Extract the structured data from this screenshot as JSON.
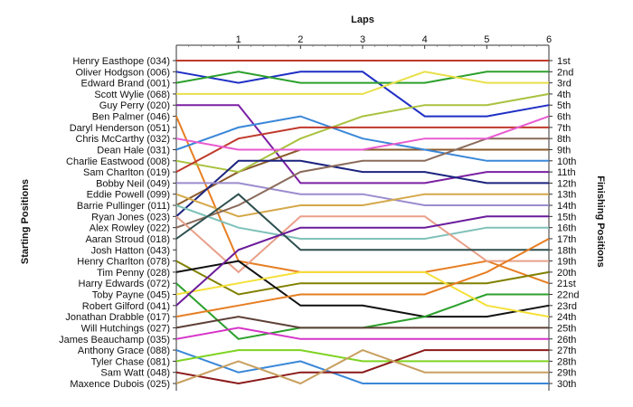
{
  "chart_data": {
    "type": "line",
    "title": "",
    "xlabel": "Laps",
    "ylabel_left": "Starting Positions",
    "ylabel_right": "Finishing Positions",
    "x_ticks": [
      "1",
      "2",
      "3",
      "4",
      "5",
      "6"
    ],
    "x": [
      0,
      1,
      2,
      3,
      4,
      5,
      6
    ],
    "ylim": [
      1,
      30
    ],
    "y_inverted": true,
    "grid": false,
    "legend": "none",
    "start_labels": [
      "Henry Easthope (034)",
      "Oliver Hodgson (006)",
      "Edward Brand (001)",
      "Scott Wylie (068)",
      "Guy Perry (020)",
      "Ben Palmer (046)",
      "Daryl Henderson (051)",
      "Chris McCarthy (032)",
      "Dean Hale (031)",
      "Charlie Eastwood (008)",
      "Sam Charlton (019)",
      "Bobby Neil (049)",
      "Eddie Powell (099)",
      "Barrie Pullinger (011)",
      "Ryan Jones (023)",
      "Alex Rowley (022)",
      "Aaran Stroud (018)",
      "Josh Hatton (043)",
      "Henry Charlton (078)",
      "Tim Penny (028)",
      "Harry Edwards (072)",
      "Toby Payne (045)",
      "Robert Gilford (041)",
      "Jonathan Drabble (017)",
      "Will Hutchings (027)",
      "James Beauchamp (035)",
      "Anthony Grace (088)",
      "Tyler Chase (081)",
      "Sam Watt (048)",
      "Maxence Dubois (025)"
    ],
    "finish_labels": [
      "1st",
      "2nd",
      "3rd",
      "4th",
      "5th",
      "6th",
      "7th",
      "8th",
      "9th",
      "10th",
      "11th",
      "12th",
      "13th",
      "14th",
      "15th",
      "16th",
      "17th",
      "18th",
      "19th",
      "20th",
      "21st",
      "22nd",
      "23rd",
      "24th",
      "25th",
      "26th",
      "27th",
      "28th",
      "29th",
      "30th"
    ],
    "series": [
      {
        "color": "#c0392b",
        "values": [
          1,
          1,
          1,
          1,
          1,
          1,
          1
        ]
      },
      {
        "color": "#1f2fc4",
        "values": [
          2,
          3,
          2,
          2,
          6,
          6,
          5
        ]
      },
      {
        "color": "#2ca02c",
        "values": [
          3,
          2,
          3,
          3,
          3,
          2,
          2
        ]
      },
      {
        "color": "#e8e04a",
        "values": [
          4,
          4,
          4,
          4,
          2,
          3,
          3
        ]
      },
      {
        "color": "#7b1fa2",
        "values": [
          5,
          5,
          12,
          12,
          12,
          11,
          11
        ]
      },
      {
        "color": "#e67e22",
        "values": [
          6,
          19,
          20,
          20,
          20,
          19,
          21
        ]
      },
      {
        "color": "#8b5a2b",
        "values": [
          14,
          11,
          9,
          9,
          9,
          9,
          9
        ]
      },
      {
        "color": "#3a87d8",
        "values": [
          9,
          7,
          6,
          8,
          9,
          10,
          10
        ]
      },
      {
        "color": "#a9c23f",
        "values": [
          10,
          11,
          8,
          6,
          5,
          5,
          4
        ]
      },
      {
        "color": "#c0392b",
        "values": [
          11,
          8,
          7,
          7,
          7,
          7,
          7
        ]
      },
      {
        "color": "#1a237e",
        "values": [
          15,
          10,
          10,
          11,
          11,
          12,
          12
        ]
      },
      {
        "color": "#9b8ccf",
        "values": [
          12,
          12,
          13,
          13,
          14,
          14,
          14
        ]
      },
      {
        "color": "#d4a84a",
        "values": [
          13,
          15,
          14,
          14,
          13,
          13,
          13
        ]
      },
      {
        "color": "#8a6a5a",
        "values": [
          16,
          14,
          11,
          10,
          10,
          8,
          8
        ]
      },
      {
        "color": "#e85bd0",
        "values": [
          8,
          9,
          9,
          9,
          8,
          8,
          6
        ]
      },
      {
        "color": "#7fc1b8",
        "values": [
          14,
          16,
          17,
          17,
          17,
          16,
          16
        ]
      },
      {
        "color": "#e8a08a",
        "values": [
          15,
          20,
          15,
          15,
          15,
          19,
          19
        ]
      },
      {
        "color": "#2f4f4f",
        "values": [
          17,
          13,
          18,
          18,
          18,
          18,
          18
        ]
      },
      {
        "color": "#808000",
        "values": [
          19,
          22,
          21,
          21,
          21,
          21,
          20
        ]
      },
      {
        "color": "#111111",
        "values": [
          20,
          19,
          23,
          23,
          24,
          24,
          23
        ]
      },
      {
        "color": "#2ca02c",
        "values": [
          21,
          26,
          25,
          25,
          24,
          22,
          22
        ]
      },
      {
        "color": "#f5e03a",
        "values": [
          22,
          21,
          20,
          20,
          20,
          23,
          24
        ]
      },
      {
        "color": "#6a1b9a",
        "values": [
          23,
          18,
          16,
          16,
          16,
          15,
          15
        ]
      },
      {
        "color": "#e67e22",
        "values": [
          24,
          23,
          22,
          22,
          22,
          20,
          17
        ]
      },
      {
        "color": "#5d4037",
        "values": [
          25,
          24,
          25,
          25,
          25,
          25,
          25
        ]
      },
      {
        "color": "#d633c8",
        "values": [
          26,
          25,
          26,
          26,
          26,
          26,
          26
        ]
      },
      {
        "color": "#3a87d8",
        "values": [
          27,
          29,
          28,
          30,
          30,
          30,
          30
        ]
      },
      {
        "color": "#7ed321",
        "values": [
          28,
          27,
          27,
          28,
          28,
          28,
          28
        ]
      },
      {
        "color": "#8b1a1a",
        "values": [
          29,
          30,
          29,
          29,
          27,
          27,
          27
        ]
      },
      {
        "color": "#c8a060",
        "values": [
          30,
          28,
          30,
          27,
          29,
          29,
          29
        ]
      }
    ]
  }
}
